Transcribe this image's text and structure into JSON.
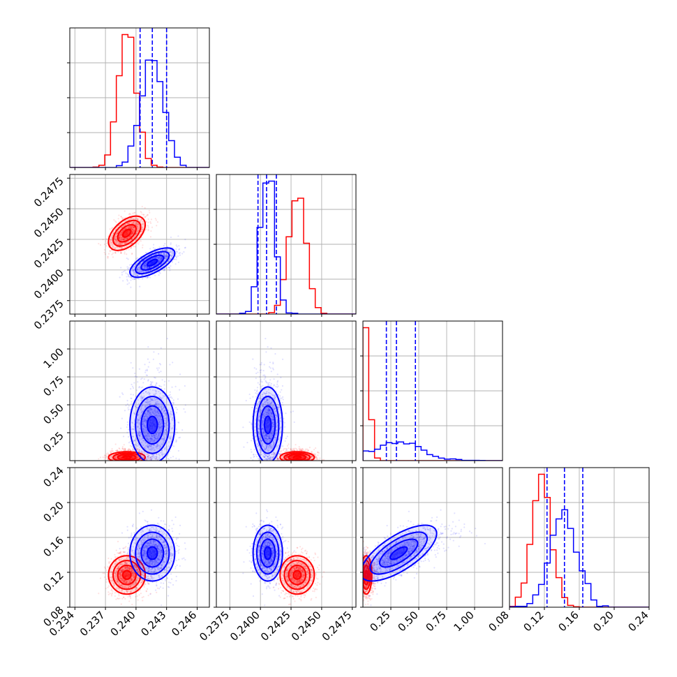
{
  "chart_data": {
    "type": "corner",
    "title": "",
    "grid": true,
    "parameters": [
      {
        "range": [
          0.2335,
          0.2472
        ],
        "ticks": [
          0.234,
          0.237,
          0.24,
          0.243,
          0.246
        ],
        "tick_labels": [
          "0.234",
          "0.237",
          "0.240",
          "0.243",
          "0.246"
        ]
      },
      {
        "range": [
          0.2364,
          0.2478
        ],
        "ticks": [
          0.2375,
          0.24,
          0.2425,
          0.245,
          0.2475
        ],
        "tick_labels": [
          "0.2375",
          "0.2400",
          "0.2425",
          "0.2450",
          "0.2475"
        ]
      },
      {
        "range": [
          0.0,
          1.25
        ],
        "ticks": [
          0.25,
          0.5,
          0.75,
          1.0
        ],
        "tick_labels": [
          "0.25",
          "0.50",
          "0.75",
          "1.00"
        ]
      },
      {
        "range": [
          0.08,
          0.24
        ],
        "ticks": [
          0.08,
          0.12,
          0.16,
          0.2,
          0.24
        ],
        "tick_labels": [
          "0.08",
          "0.12",
          "0.16",
          "0.20",
          "0.24"
        ]
      }
    ],
    "series": [
      {
        "color": "#ff0000",
        "mean": [
          0.2391,
          0.243,
          0.03,
          0.117
        ],
        "sd": [
          0.0009,
          0.0007,
          0.025,
          0.011
        ],
        "corr": [
          0.5,
          0.0,
          0.0,
          0.0,
          0.0,
          0.0
        ]
      },
      {
        "color": "#0000ff",
        "mean": [
          0.2416,
          0.2406,
          0.32,
          0.142
        ],
        "sd": [
          0.0011,
          0.0006,
          0.17,
          0.016
        ],
        "corr": [
          0.65,
          0.0,
          0.0,
          0.0,
          0.0,
          0.7
        ]
      }
    ],
    "quantile_lines": {
      "color": "#0000ff",
      "style": "dashed",
      "values": [
        [
          0.2404,
          0.2416,
          0.243
        ],
        [
          0.2398,
          0.2405,
          0.2413
        ],
        [
          0.21,
          0.3,
          0.47
        ],
        [
          0.123,
          0.143,
          0.164
        ]
      ]
    }
  }
}
